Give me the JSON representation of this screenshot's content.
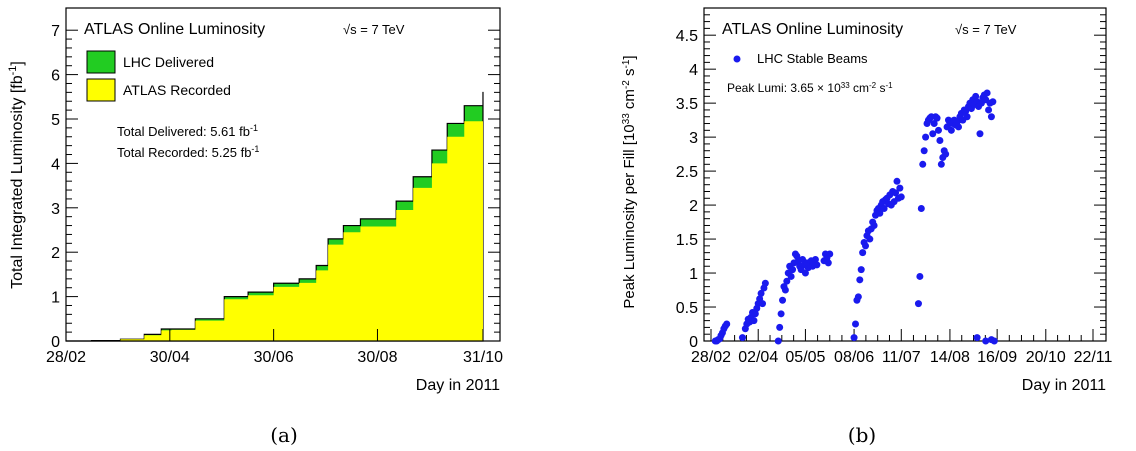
{
  "chart_data": [
    {
      "type": "area",
      "title": "ATLAS Online Luminosity",
      "energy_label": "√s = 7 TeV",
      "ylabel": "Total Integrated Luminosity [fb",
      "ylabel_sup": "-1",
      "ylabel_close": "]",
      "xlabel": "Day in 2011",
      "x_ticks": [
        "28/02",
        "30/04",
        "30/06",
        "30/08",
        "31/10"
      ],
      "y_ticks": [
        "0",
        "1",
        "2",
        "3",
        "4",
        "5",
        "6",
        "7"
      ],
      "ylim": [
        0,
        7.5
      ],
      "legend": [
        {
          "label": "LHC Delivered",
          "color": "#22cc22"
        },
        {
          "label": "ATLAS Recorded",
          "color": "#ffff00"
        }
      ],
      "annotations": [
        {
          "text": "Total Delivered: 5.61 fb",
          "sup": "-1"
        },
        {
          "text": "Total Recorded: 5.25 fb",
          "sup": "-1"
        }
      ],
      "series": [
        {
          "name": "LHC Delivered",
          "x": [
            "2011-02-28",
            "2011-03-15",
            "2011-04-01",
            "2011-04-15",
            "2011-04-25",
            "2011-05-01",
            "2011-05-15",
            "2011-06-01",
            "2011-06-15",
            "2011-06-30",
            "2011-07-15",
            "2011-07-25",
            "2011-08-01",
            "2011-08-10",
            "2011-08-20",
            "2011-08-30",
            "2011-09-10",
            "2011-09-20",
            "2011-10-01",
            "2011-10-10",
            "2011-10-20",
            "2011-10-31"
          ],
          "y": [
            0,
            0.01,
            0.04,
            0.15,
            0.27,
            0.27,
            0.5,
            1.0,
            1.1,
            1.3,
            1.4,
            1.7,
            2.3,
            2.6,
            2.75,
            2.75,
            3.15,
            3.7,
            4.3,
            4.9,
            5.3,
            5.61
          ]
        },
        {
          "name": "ATLAS Recorded",
          "x": [
            "2011-02-28",
            "2011-03-15",
            "2011-04-01",
            "2011-04-15",
            "2011-04-25",
            "2011-05-01",
            "2011-05-15",
            "2011-06-01",
            "2011-06-15",
            "2011-06-30",
            "2011-07-15",
            "2011-07-25",
            "2011-08-01",
            "2011-08-10",
            "2011-08-20",
            "2011-08-30",
            "2011-09-10",
            "2011-09-20",
            "2011-10-01",
            "2011-10-10",
            "2011-10-20",
            "2011-10-31"
          ],
          "y": [
            0,
            0.01,
            0.04,
            0.13,
            0.24,
            0.25,
            0.46,
            0.94,
            1.03,
            1.22,
            1.31,
            1.59,
            2.17,
            2.45,
            2.58,
            2.58,
            2.95,
            3.45,
            4.0,
            4.6,
            4.95,
            5.25
          ]
        }
      ],
      "grid": false,
      "legend_position": "top-left",
      "caption": "(a)"
    },
    {
      "type": "scatter",
      "title": "ATLAS Online Luminosity",
      "energy_label": "√s = 7 TeV",
      "ylabel": "Peak Luminosity per Fill [10",
      "ylabel_sup": "33",
      "ylabel_mid": " cm",
      "ylabel_sup2": "-2",
      "ylabel_mid2": " s",
      "ylabel_sup3": "-1",
      "ylabel_close": "]",
      "xlabel": "Day in 2011",
      "x_ticks": [
        "28/02",
        "02/04",
        "05/05",
        "08/06",
        "11/07",
        "14/08",
        "16/09",
        "20/10",
        "22/11"
      ],
      "y_ticks": [
        "0",
        "0.5",
        "1",
        "1.5",
        "2",
        "2.5",
        "3",
        "3.5",
        "4",
        "4.5"
      ],
      "ylim": [
        0,
        4.9
      ],
      "legend": [
        {
          "label": "LHC Stable Beams",
          "color": "#1a1aee"
        }
      ],
      "annotation": {
        "text": "Peak Lumi: 3.65 × 10",
        "sup": "33",
        "mid": " cm",
        "sup2": "-2",
        "mid2": " s",
        "sup3": "-1"
      },
      "series": [
        {
          "name": "LHC Stable Beams",
          "points": [
            [
              3,
              0.0
            ],
            [
              4,
              0.0
            ],
            [
              5,
              0.02
            ],
            [
              6,
              0.03
            ],
            [
              7,
              0.08
            ],
            [
              8,
              0.12
            ],
            [
              9,
              0.18
            ],
            [
              10,
              0.22
            ],
            [
              11,
              0.25
            ],
            [
              22,
              0.05
            ],
            [
              24,
              0.18
            ],
            [
              25,
              0.25
            ],
            [
              26,
              0.32
            ],
            [
              27,
              0.28
            ],
            [
              28,
              0.35
            ],
            [
              29,
              0.42
            ],
            [
              30,
              0.3
            ],
            [
              31,
              0.4
            ],
            [
              32,
              0.48
            ],
            [
              33,
              0.55
            ],
            [
              34,
              0.62
            ],
            [
              35,
              0.7
            ],
            [
              36,
              0.55
            ],
            [
              37,
              0.78
            ],
            [
              38,
              0.85
            ],
            [
              47,
              0.0
            ],
            [
              48,
              0.2
            ],
            [
              49,
              0.4
            ],
            [
              50,
              0.6
            ],
            [
              51,
              0.8
            ],
            [
              52,
              0.75
            ],
            [
              53,
              0.88
            ],
            [
              54,
              1.0
            ],
            [
              55,
              1.1
            ],
            [
              56,
              0.95
            ],
            [
              57,
              1.05
            ],
            [
              58,
              1.15
            ],
            [
              59,
              1.28
            ],
            [
              60,
              1.25
            ],
            [
              61,
              1.18
            ],
            [
              62,
              1.1
            ],
            [
              63,
              1.05
            ],
            [
              64,
              1.2
            ],
            [
              65,
              1.12
            ],
            [
              66,
              1.0
            ],
            [
              67,
              1.15
            ],
            [
              68,
              1.08
            ],
            [
              69,
              1.12
            ],
            [
              70,
              1.18
            ],
            [
              71,
              1.1
            ],
            [
              72,
              1.15
            ],
            [
              73,
              1.2
            ],
            [
              74,
              1.12
            ],
            [
              79,
              1.18
            ],
            [
              80,
              1.28
            ],
            [
              81,
              1.22
            ],
            [
              82,
              1.15
            ],
            [
              83,
              1.28
            ],
            [
              100,
              0.05
            ],
            [
              101,
              0.25
            ],
            [
              102,
              0.6
            ],
            [
              103,
              0.65
            ],
            [
              104,
              0.9
            ],
            [
              105,
              1.05
            ],
            [
              106,
              1.3
            ],
            [
              107,
              1.45
            ],
            [
              108,
              1.4
            ],
            [
              109,
              1.55
            ],
            [
              110,
              1.62
            ],
            [
              111,
              1.5
            ],
            [
              112,
              1.65
            ],
            [
              113,
              1.75
            ],
            [
              114,
              1.7
            ],
            [
              115,
              1.85
            ],
            [
              116,
              1.92
            ],
            [
              117,
              1.95
            ],
            [
              118,
              1.88
            ],
            [
              119,
              2.0
            ],
            [
              120,
              2.05
            ],
            [
              121,
              1.95
            ],
            [
              122,
              2.08
            ],
            [
              123,
              2.1
            ],
            [
              124,
              2.02
            ],
            [
              125,
              2.15
            ],
            [
              126,
              2.0
            ],
            [
              127,
              2.2
            ],
            [
              128,
              2.05
            ],
            [
              129,
              2.18
            ],
            [
              130,
              2.35
            ],
            [
              131,
              2.1
            ],
            [
              132,
              2.25
            ],
            [
              133,
              2.12
            ],
            [
              145,
              0.55
            ],
            [
              146,
              0.95
            ],
            [
              147,
              1.95
            ],
            [
              148,
              2.6
            ],
            [
              149,
              2.8
            ],
            [
              150,
              3.0
            ],
            [
              151,
              3.2
            ],
            [
              152,
              3.25
            ],
            [
              153,
              3.28
            ],
            [
              154,
              3.3
            ],
            [
              155,
              3.05
            ],
            [
              156,
              3.2
            ],
            [
              157,
              3.3
            ],
            [
              158,
              3.28
            ],
            [
              159,
              3.1
            ],
            [
              160,
              2.95
            ],
            [
              161,
              2.6
            ],
            [
              162,
              2.7
            ],
            [
              163,
              2.8
            ],
            [
              164,
              2.75
            ],
            [
              165,
              3.15
            ],
            [
              166,
              3.25
            ],
            [
              167,
              3.2
            ],
            [
              168,
              3.1
            ],
            [
              169,
              3.2
            ],
            [
              170,
              3.25
            ],
            [
              171,
              3.18
            ],
            [
              172,
              3.22
            ],
            [
              173,
              3.15
            ],
            [
              174,
              3.3
            ],
            [
              175,
              3.35
            ],
            [
              176,
              3.25
            ],
            [
              177,
              3.4
            ],
            [
              178,
              3.38
            ],
            [
              179,
              3.3
            ],
            [
              180,
              3.45
            ],
            [
              181,
              3.5
            ],
            [
              182,
              3.42
            ],
            [
              183,
              3.55
            ],
            [
              184,
              3.48
            ],
            [
              185,
              3.6
            ],
            [
              186,
              3.52
            ],
            [
              187,
              3.45
            ],
            [
              188,
              3.05
            ],
            [
              189,
              3.5
            ],
            [
              190,
              3.58
            ],
            [
              191,
              3.62
            ],
            [
              192,
              3.55
            ],
            [
              193,
              3.65
            ],
            [
              194,
              3.4
            ],
            [
              195,
              3.5
            ],
            [
              196,
              3.3
            ],
            [
              197,
              3.52
            ],
            [
              186,
              0.05
            ],
            [
              192,
              0.0
            ],
            [
              196,
              0.02
            ],
            [
              198,
              0.0
            ]
          ]
        }
      ],
      "grid": false,
      "legend_position": "top-left",
      "caption": "(b)"
    }
  ]
}
